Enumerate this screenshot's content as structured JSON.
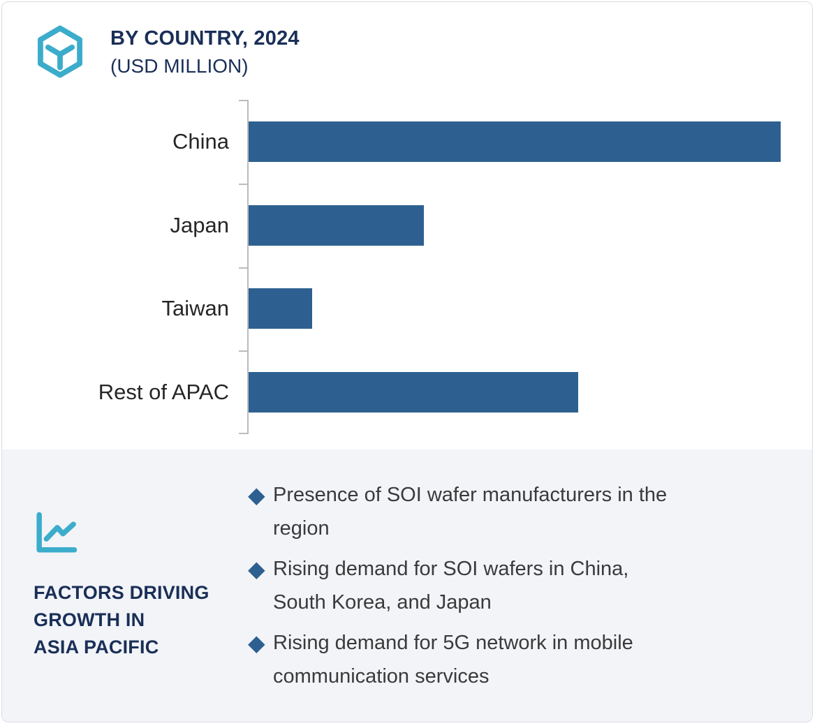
{
  "header": {
    "title": "BY COUNTRY, 2024",
    "subtitle": "(USD MILLION)"
  },
  "colors": {
    "bar_blue": "#2d6090",
    "accent_cyan": "#3caccb",
    "navy_text": "#1a2f57",
    "panel_background": "#f2f4f8",
    "axis_gray": "#b9bcbe"
  },
  "icons": {
    "logo": "hexagon-y-logo-icon",
    "growth": "line-chart-icon",
    "bullet": "diamond-bullet-icon"
  },
  "chart_data": {
    "type": "bar",
    "orientation": "horizontal",
    "title": "BY COUNTRY, 2024 (USD MILLION)",
    "xlabel": "",
    "ylabel": "",
    "categories": [
      "China",
      "Japan",
      "Taiwan",
      "Rest of APAC"
    ],
    "values": [
      100,
      33,
      12,
      62
    ],
    "values_note": "No numeric axis labels shown; values are relative bar lengths estimated with China = 100",
    "axis_numeric_labels_shown": false,
    "grid": false,
    "legend": false
  },
  "factors": {
    "heading_lines": [
      "FACTORS DRIVING",
      "GROWTH IN",
      "ASIA PACIFIC"
    ],
    "bullets": [
      {
        "line1": "Presence of SOI wafer manufacturers in the",
        "line2": "region"
      },
      {
        "line1": "Rising demand for SOI wafers in China,",
        "line2": "South Korea, and Japan"
      },
      {
        "line1": "Rising demand for 5G network in mobile",
        "line2": "communication services"
      }
    ]
  }
}
